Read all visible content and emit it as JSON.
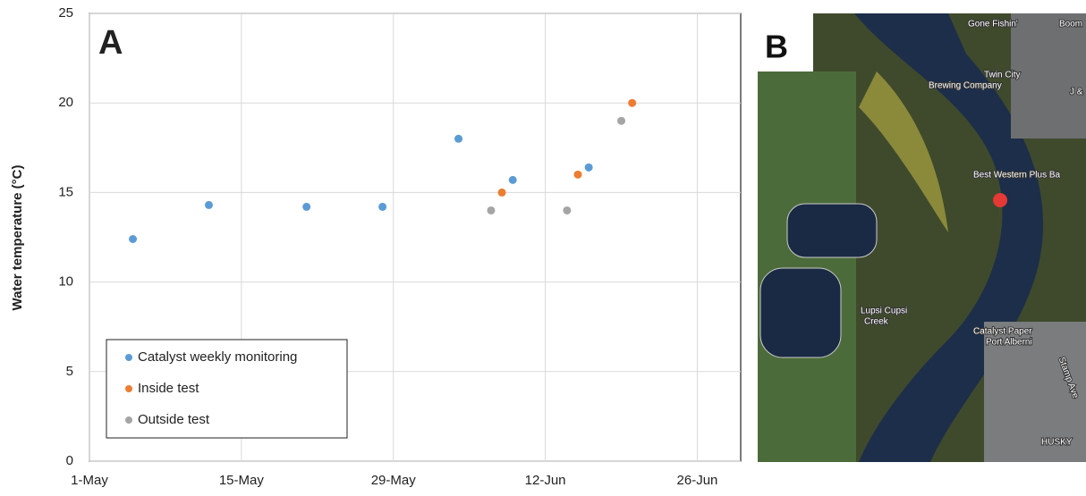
{
  "chart_data": {
    "type": "scatter",
    "panel_label": "A",
    "ylabel": "Water temperature (°C)",
    "xlim": [
      "1-May",
      "30-Jun"
    ],
    "xticks": [
      "1-May",
      "15-May",
      "29-May",
      "12-Jun",
      "26-Jun"
    ],
    "ylim": [
      0,
      25
    ],
    "yticks": [
      0,
      5,
      10,
      15,
      20,
      25
    ],
    "grid": true,
    "legend": "lower left",
    "series": [
      {
        "name": "Catalyst weekly monitoring",
        "color": "#5b9bd5",
        "x": [
          "5-May",
          "12-May",
          "21-May",
          "28-May",
          "4-Jun",
          "9-Jun",
          "16-Jun"
        ],
        "values": [
          12.4,
          14.3,
          14.2,
          14.2,
          18.0,
          15.7,
          16.4
        ]
      },
      {
        "name": "Inside test",
        "color": "#ed7d31",
        "x": [
          "8-Jun",
          "15-Jun",
          "20-Jun"
        ],
        "values": [
          15.0,
          16.0,
          20.0
        ]
      },
      {
        "name": "Outside test",
        "color": "#a5a5a5",
        "x": [
          "7-Jun",
          "14-Jun",
          "19-Jun"
        ],
        "values": [
          14.0,
          14.0,
          19.0
        ]
      }
    ]
  },
  "map": {
    "panel_label": "B",
    "labels": [
      "Gone Fishin'",
      "Boom",
      "Twin City",
      "Brewing Company",
      "J &",
      "Best Western Plus Ba",
      "Lupsi Cupsi",
      "Creek",
      "Catalyst Paper",
      "Port Alberni",
      "Stamp Ave",
      "HUSKY"
    ]
  }
}
